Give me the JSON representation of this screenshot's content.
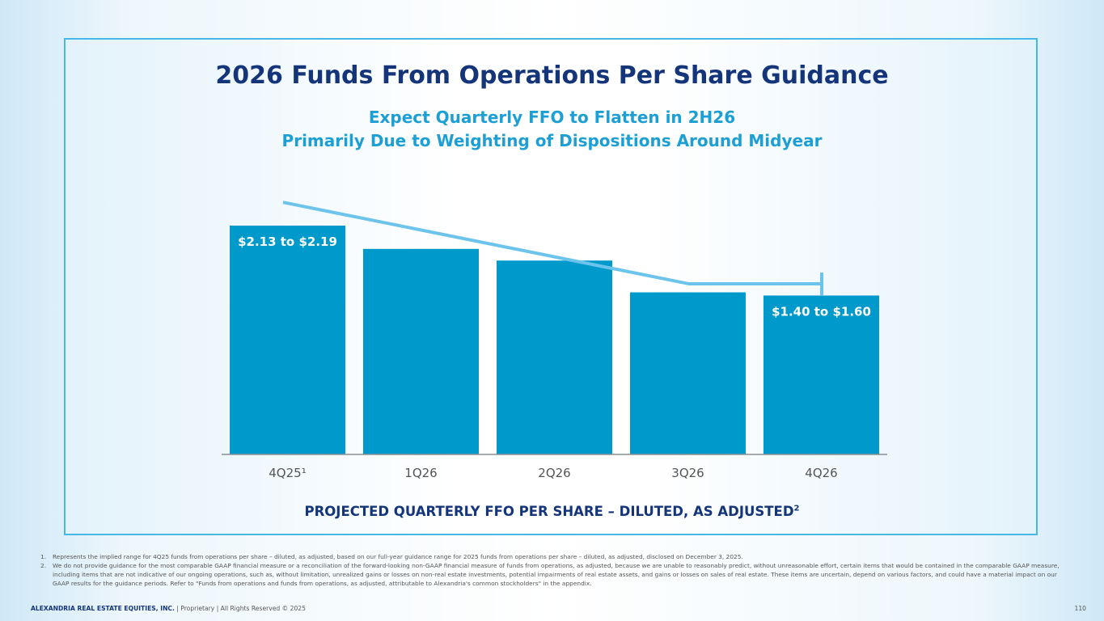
{
  "title": "2026 Funds From Operations Per Share Guidance",
  "subtitle": {
    "line1": "Expect Quarterly FFO to Flatten in 2H26",
    "line2": "Primarily Due to Weighting of Dispositions Around Midyear"
  },
  "chart_data": {
    "type": "bar",
    "categories": [
      "4Q25¹",
      "1Q26",
      "2Q26",
      "3Q26",
      "4Q26"
    ],
    "values": [
      2.16,
      1.94,
      1.83,
      1.53,
      1.5
    ],
    "ylim": [
      0,
      2.16
    ],
    "data_labels": [
      "$2.13 to $2.19",
      "",
      "",
      "",
      "$1.40 to $1.60"
    ],
    "xlabel": "PROJECTED QUARTERLY FFO PER SHARE – DILUTED, AS ADJUSTED",
    "xlabel_sup": "2",
    "trend_line": {
      "description_points": [
        2.38,
        1.61,
        1.61
      ],
      "color": "#6cc4ec"
    },
    "bar_color": "#0099cc",
    "grid": false,
    "legend": "none"
  },
  "footnotes": [
    {
      "num": "1.",
      "text": "Represents the implied range for 4Q25 funds from operations per share – diluted, as adjusted, based on our full-year guidance range for 2025 funds from operations per share – diluted, as adjusted, disclosed on December 3, 2025."
    },
    {
      "num": "2.",
      "text": "We do not provide guidance for the most comparable GAAP financial measure or a reconciliation of the forward-looking non-GAAP financial measure of funds from operations, as adjusted, because we are unable to reasonably predict, without unreasonable effort, certain items that would be contained in the comparable GAAP measure, including items that are not indicative of our ongoing operations, such as, without limitation, unrealized gains or losses on non-real estate investments, potential impairments of real estate assets, and gains or losses on sales of real estate. These items are uncertain, depend on various factors, and could have a material impact on our GAAP results for the guidance periods. Refer to \"Funds from operations and funds from operations, as adjusted, attributable to Alexandria's common stockholders\" in the appendix."
    }
  ],
  "footer": {
    "company": "ALEXANDRIA REAL ESTATE EQUITIES, INC.",
    "rest": " | Proprietary | All Rights Reserved © 2025",
    "page": "110"
  }
}
